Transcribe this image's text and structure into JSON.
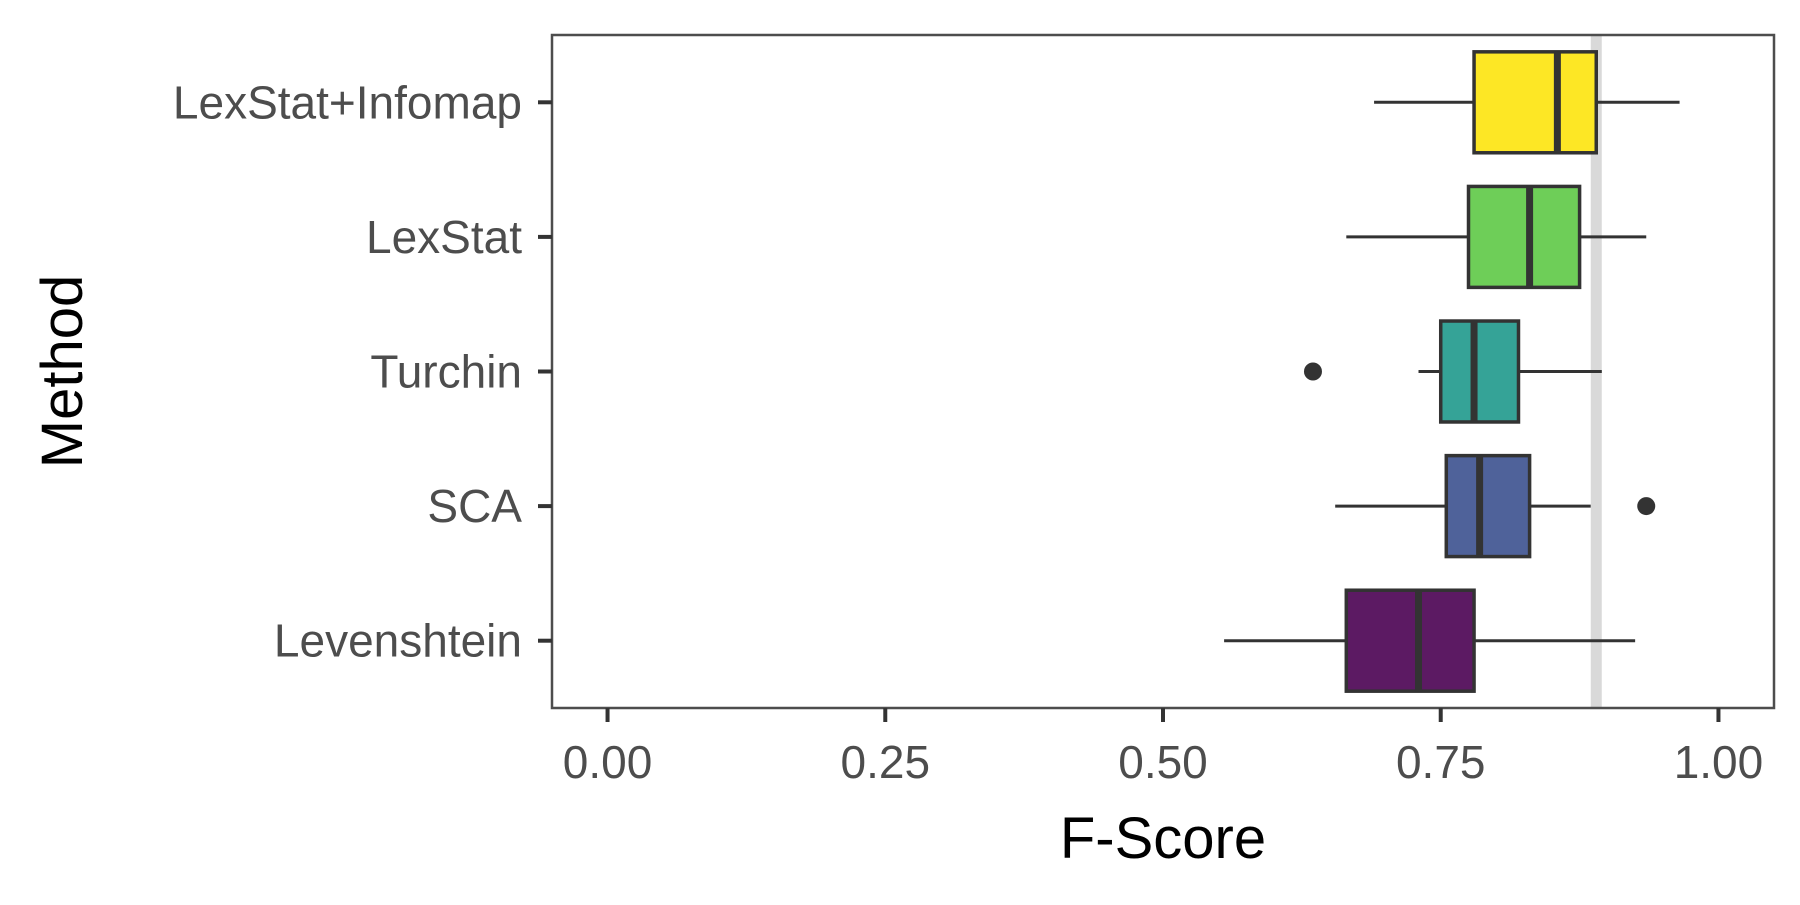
{
  "chart_data": {
    "type": "boxplot",
    "orientation": "horizontal",
    "xlabel": "F-Score",
    "ylabel": "Method",
    "xlim": [
      -0.05,
      1.05
    ],
    "x_ticks": [
      0.0,
      0.25,
      0.5,
      0.75,
      1.0
    ],
    "x_tick_labels": [
      "0.00",
      "0.25",
      "0.50",
      "0.75",
      "1.00"
    ],
    "reference_line_x": 0.89,
    "grid": false,
    "categories": [
      "LexStat+Infomap",
      "LexStat",
      "Turchin",
      "SCA",
      "Levenshtein"
    ],
    "boxes": [
      {
        "name": "LexStat+Infomap",
        "whisker_low": 0.69,
        "q1": 0.78,
        "median": 0.855,
        "q3": 0.89,
        "whisker_high": 0.965,
        "outliers": [],
        "color": "#fde725"
      },
      {
        "name": "LexStat",
        "whisker_low": 0.665,
        "q1": 0.775,
        "median": 0.83,
        "q3": 0.875,
        "whisker_high": 0.935,
        "outliers": [],
        "color": "#6ece58"
      },
      {
        "name": "Turchin",
        "whisker_low": 0.73,
        "q1": 0.75,
        "median": 0.78,
        "q3": 0.82,
        "whisker_high": 0.895,
        "outliers": [
          0.635
        ],
        "color": "#35a397"
      },
      {
        "name": "SCA",
        "whisker_low": 0.655,
        "q1": 0.755,
        "median": 0.785,
        "q3": 0.83,
        "whisker_high": 0.885,
        "outliers": [
          0.935
        ],
        "color": "#4f629a"
      },
      {
        "name": "Levenshtein",
        "whisker_low": 0.555,
        "q1": 0.665,
        "median": 0.73,
        "q3": 0.78,
        "whisker_high": 0.925,
        "outliers": [],
        "color": "#5c1a63"
      }
    ]
  }
}
